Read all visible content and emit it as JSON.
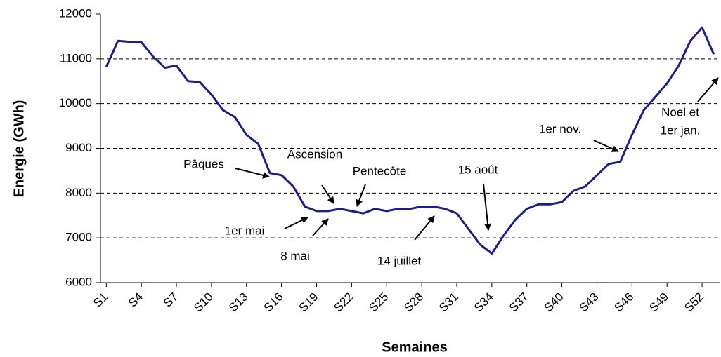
{
  "chart_data": {
    "type": "line",
    "y_label": "Energie (GWh)",
    "x_label": "Semaines",
    "categories": [
      "S1",
      null,
      null,
      "S4",
      null,
      null,
      "S7",
      null,
      null,
      "S10",
      null,
      null,
      "S13",
      null,
      null,
      "S16",
      null,
      null,
      "S19",
      null,
      null,
      "S22",
      null,
      null,
      "S25",
      null,
      null,
      "S28",
      null,
      null,
      "S31",
      null,
      null,
      "S34",
      null,
      null,
      "S37",
      null,
      null,
      "S40",
      null,
      null,
      "S43",
      null,
      null,
      "S46",
      null,
      null,
      "S49",
      null,
      null,
      "S52",
      null
    ],
    "series": [
      {
        "color": "#1c1c8a",
        "values": [
          10820,
          11400,
          11380,
          11370,
          11050,
          10800,
          10850,
          10500,
          10480,
          10200,
          9850,
          9700,
          9300,
          9100,
          8450,
          8400,
          8150,
          7700,
          7600,
          7600,
          7650,
          7600,
          7550,
          7650,
          7600,
          7650,
          7650,
          7700,
          7700,
          7650,
          7550,
          7200,
          6850,
          6650,
          7050,
          7400,
          7650,
          7750,
          7750,
          7800,
          8050,
          8150,
          8400,
          8650,
          8700,
          9300,
          9850,
          10150,
          10450,
          10850,
          11400,
          11700,
          11100
        ]
      }
    ],
    "ylim": [
      6000,
      12000
    ],
    "yticks": [
      6000,
      7000,
      8000,
      9000,
      10000,
      11000,
      12000
    ],
    "grid": true,
    "annotations": [
      {
        "text": "Pâques"
      },
      {
        "text": "Ascension"
      },
      {
        "text": "Pentecôte"
      },
      {
        "text": "1er mai"
      },
      {
        "text": "8 mai"
      },
      {
        "text": "14 juillet"
      },
      {
        "text": "15 août"
      },
      {
        "text": "1er nov."
      },
      {
        "text": "Noel et"
      },
      {
        "text": "1er jan."
      }
    ]
  }
}
